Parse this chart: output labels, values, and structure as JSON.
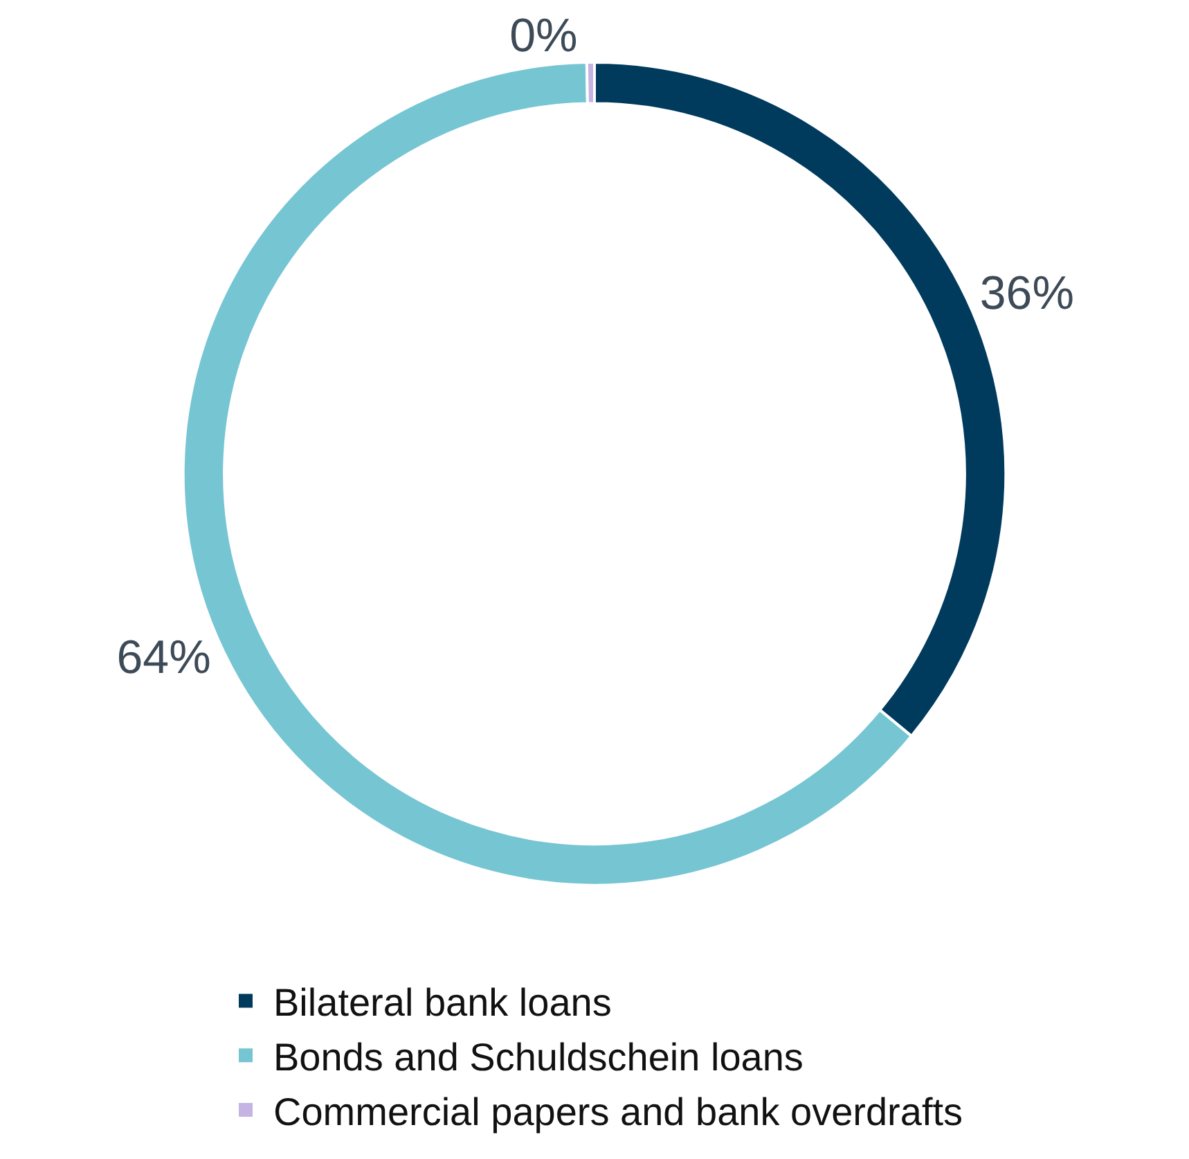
{
  "chart_data": {
    "type": "donut",
    "categories": [
      "Bilateral bank loans",
      "Bonds and Schuldschein loans",
      "Commercial papers and bank overdrafts"
    ],
    "values": [
      36,
      63.7,
      0.3
    ],
    "value_labels": [
      "36%",
      "64%",
      "0%"
    ],
    "colors": [
      "#003a5d",
      "#76c5d3",
      "#c5b4e3"
    ],
    "legend": "bottom"
  }
}
